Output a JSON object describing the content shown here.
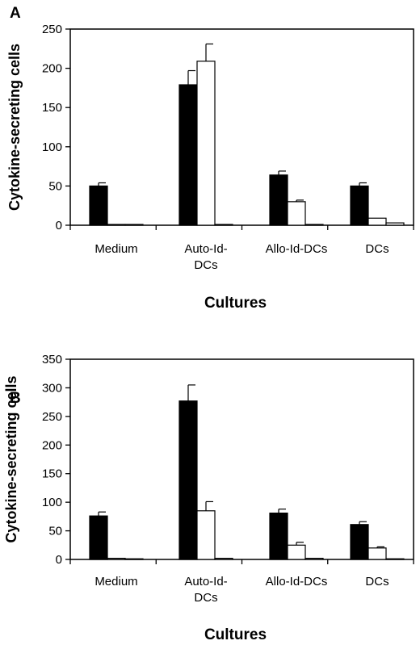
{
  "chart_data": [
    {
      "panel_label": "A",
      "type": "bar",
      "ylabel": "Cytokine-secreting cells",
      "xlabel": "Cultures",
      "ylim": [
        0,
        250
      ],
      "yticks": [
        0,
        50,
        100,
        150,
        200,
        250
      ],
      "categories": [
        [
          "Medium"
        ],
        [
          "Auto-Id-",
          "DCs"
        ],
        [
          "Allo-Id-DCs"
        ],
        [
          "DCs"
        ]
      ],
      "series": [
        {
          "color": "#000000",
          "values": [
            50,
            179,
            64,
            50
          ],
          "errors": [
            4,
            18,
            5,
            4
          ]
        },
        {
          "color": "#ffffff",
          "values": [
            1,
            209,
            30,
            9
          ],
          "errors": [
            0,
            22,
            2,
            0
          ]
        },
        {
          "color": "#ffffff",
          "values": [
            1,
            1,
            1,
            3
          ],
          "errors": [
            0,
            0,
            0,
            0
          ]
        }
      ]
    },
    {
      "panel_label": "B",
      "type": "bar",
      "ylabel": "Cytokine-secreting cells",
      "xlabel": "Cultures",
      "ylim": [
        0,
        350
      ],
      "yticks": [
        0,
        50,
        100,
        150,
        200,
        250,
        300,
        350
      ],
      "categories": [
        [
          "Medium"
        ],
        [
          "Auto-Id-",
          "DCs"
        ],
        [
          "Allo-Id-DCs"
        ],
        [
          "DCs"
        ]
      ],
      "series": [
        {
          "color": "#000000",
          "values": [
            76,
            277,
            81,
            61
          ],
          "errors": [
            7,
            28,
            7,
            5
          ]
        },
        {
          "color": "#ffffff",
          "values": [
            2,
            85,
            25,
            20
          ],
          "errors": [
            0,
            16,
            5,
            2
          ]
        },
        {
          "color": "#ffffff",
          "values": [
            0,
            2,
            2,
            0
          ],
          "errors": [
            0,
            0,
            0,
            0
          ]
        }
      ]
    }
  ]
}
